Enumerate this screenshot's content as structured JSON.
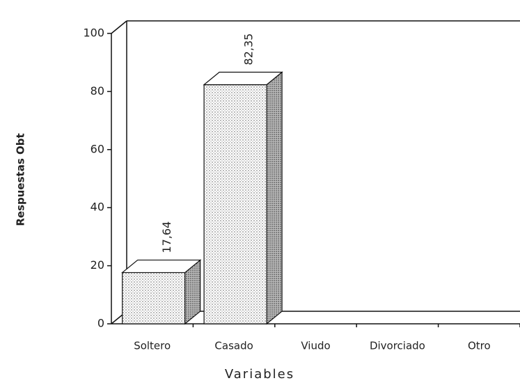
{
  "chart_data": {
    "type": "bar3d",
    "categories": [
      "Soltero",
      "Casado",
      "Viudo",
      "Divorciado",
      "Otro"
    ],
    "values": [
      17.64,
      82.35,
      0,
      0,
      0
    ],
    "value_labels": [
      "17,64",
      "82,35",
      null,
      null,
      null
    ],
    "xlabel": "Variables",
    "ylabel": "Respuestas Obt",
    "ylim": [
      0,
      100
    ],
    "yticks": [
      0,
      20,
      40,
      60,
      80,
      100
    ]
  }
}
